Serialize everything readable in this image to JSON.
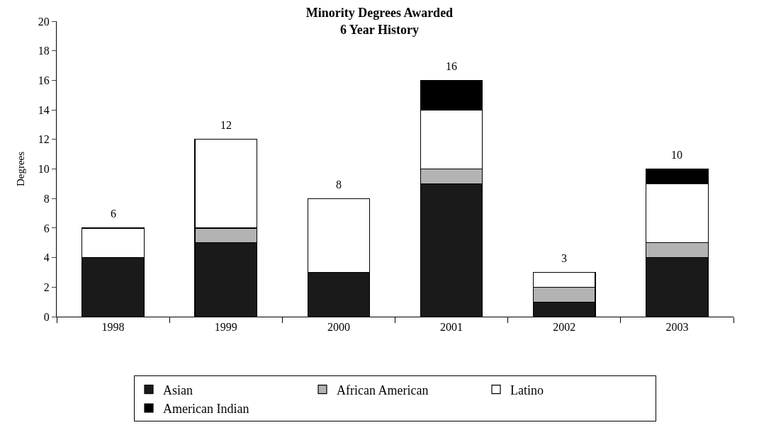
{
  "chart_data": {
    "type": "bar",
    "title": "Minority Degrees Awarded\n6 Year History",
    "ylabel": "Degrees",
    "categories": [
      "1998",
      "1999",
      "2000",
      "2001",
      "2002",
      "2003"
    ],
    "stacked": true,
    "series": [
      {
        "name": "Asian",
        "color": "#1a1a1a",
        "values": [
          4,
          5,
          3,
          9,
          1,
          4
        ]
      },
      {
        "name": "African American",
        "color": "#b3b3b3",
        "values": [
          0,
          1,
          0,
          1,
          1,
          1
        ]
      },
      {
        "name": "Latino",
        "color": "#ffffff",
        "values": [
          2,
          6,
          5,
          4,
          1,
          4
        ]
      },
      {
        "name": "American Indian",
        "color": "#000000",
        "values": [
          0,
          0,
          0,
          2,
          0,
          1
        ]
      }
    ],
    "totals": [
      "6",
      "12",
      "8",
      "16",
      "3",
      "10"
    ],
    "ylim": [
      0,
      20
    ],
    "yticks": [
      0,
      2,
      4,
      6,
      8,
      10,
      12,
      14,
      16,
      18,
      20
    ],
    "grid": false,
    "legend": "bottom"
  }
}
